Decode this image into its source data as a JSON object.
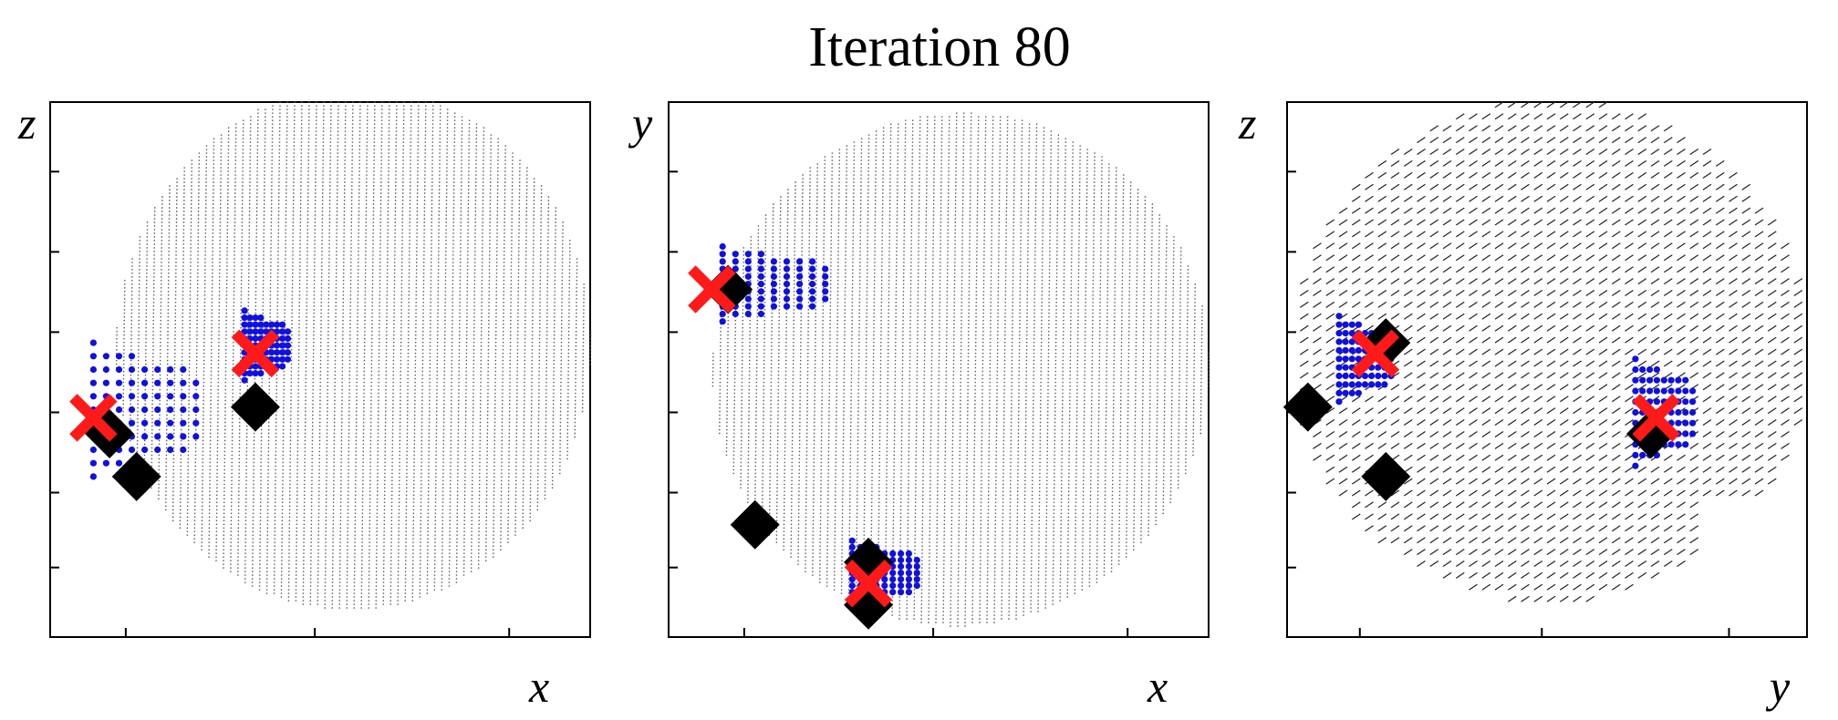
{
  "figure": {
    "title": "Iteration 80"
  },
  "colors": {
    "cloud": "#555555",
    "cluster_points": "#1010e0",
    "true_centers": "#000000",
    "estimates": "#ff1a1a"
  },
  "chart_data": [
    {
      "type": "scatter",
      "view": "x-z projection",
      "xlabel": "x",
      "ylabel": "z",
      "xlim": [
        0,
        1
      ],
      "ylim": [
        0,
        1
      ],
      "grid": false,
      "legend": "none",
      "xticks": [
        0.14,
        0.49,
        0.85
      ],
      "yticks": [
        0.13,
        0.27,
        0.42,
        0.57,
        0.72,
        0.87
      ],
      "series": [
        {
          "kind": "true-centers",
          "marker": "diamond",
          "points": [
            [
              0.11,
              0.38
            ],
            [
              0.16,
              0.3
            ],
            [
              0.38,
              0.43
            ]
          ]
        },
        {
          "kind": "estimates",
          "marker": "x",
          "points": [
            [
              0.08,
              0.41
            ],
            [
              0.38,
              0.53
            ]
          ]
        },
        {
          "kind": "cluster-points",
          "marker": "dot",
          "boxes": [
            [
              0.08,
              0.27,
              0.3,
              0.55
            ],
            [
              0.36,
              0.44,
              0.48,
              0.61
            ]
          ]
        }
      ]
    },
    {
      "type": "scatter",
      "view": "x-y projection",
      "xlabel": "x",
      "ylabel": "y",
      "xlim": [
        0,
        1
      ],
      "ylim": [
        0,
        1
      ],
      "grid": false,
      "legend": "none",
      "xticks": [
        0.14,
        0.49,
        0.85
      ],
      "yticks": [
        0.13,
        0.27,
        0.42,
        0.57,
        0.72,
        0.87
      ],
      "series": [
        {
          "kind": "true-centers",
          "marker": "diamond",
          "points": [
            [
              0.11,
              0.65
            ],
            [
              0.16,
              0.21
            ],
            [
              0.37,
              0.14
            ],
            [
              0.37,
              0.06
            ]
          ]
        },
        {
          "kind": "estimates",
          "marker": "x",
          "points": [
            [
              0.08,
              0.65
            ],
            [
              0.37,
              0.1
            ]
          ]
        },
        {
          "kind": "cluster-points",
          "marker": "dot",
          "boxes": [
            [
              0.1,
              0.29,
              0.59,
              0.73
            ],
            [
              0.34,
              0.46,
              0.06,
              0.18
            ]
          ]
        }
      ]
    },
    {
      "type": "scatter",
      "view": "y-z projection",
      "xlabel": "y",
      "ylabel": "z",
      "xlim": [
        0,
        1
      ],
      "ylim": [
        0,
        1
      ],
      "grid": false,
      "legend": "none",
      "xticks": [
        0.14,
        0.49,
        0.85
      ],
      "yticks": [
        0.13,
        0.27,
        0.42,
        0.57,
        0.72,
        0.87
      ],
      "series": [
        {
          "kind": "true-centers",
          "marker": "diamond",
          "points": [
            [
              0.04,
              0.43
            ],
            [
              0.19,
              0.3
            ],
            [
              0.19,
              0.55
            ],
            [
              0.7,
              0.38
            ]
          ]
        },
        {
          "kind": "estimates",
          "marker": "x",
          "points": [
            [
              0.17,
              0.53
            ],
            [
              0.71,
              0.41
            ]
          ]
        },
        {
          "kind": "cluster-points",
          "marker": "dot",
          "boxes": [
            [
              0.1,
              0.2,
              0.44,
              0.6
            ],
            [
              0.67,
              0.78,
              0.32,
              0.52
            ]
          ]
        }
      ]
    }
  ]
}
